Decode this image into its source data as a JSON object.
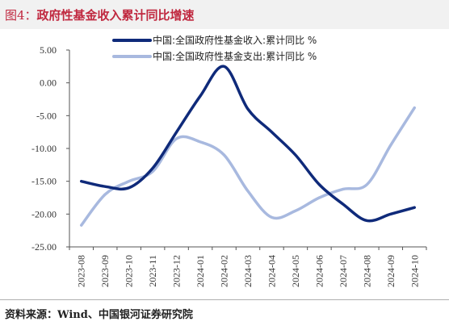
{
  "title_prefix": "图4：",
  "title": "政府性基金收入累计同比增速",
  "source": "资料来源：Wind、中国银河证券研究院",
  "chart_data": {
    "type": "line",
    "categories": [
      "2023-08",
      "2023-09",
      "2023-10",
      "2023-11",
      "2023-12",
      "2024-01",
      "2024-02",
      "2024-03",
      "2024-04",
      "2024-05",
      "2024-06",
      "2024-07",
      "2024-08",
      "2024-09",
      "2024-10"
    ],
    "ylim": [
      -25,
      5
    ],
    "yticks": [
      5,
      0,
      -5,
      -10,
      -15,
      -20,
      -25
    ],
    "ytick_labels": [
      "5.00",
      "0.00",
      "-5.00",
      "-10.00",
      "-15.00",
      "-20.00",
      "-25.00"
    ],
    "legend_placement": "top-right",
    "series": [
      {
        "name": "中国:全国政府性基金收入:累计同比 %",
        "color": "#0f2a7a",
        "values": [
          -15.0,
          -15.8,
          -16.0,
          -13.0,
          -7.5,
          -2.0,
          2.5,
          -4.0,
          -7.5,
          -11.0,
          -15.5,
          -18.5,
          -21.0,
          -20.0,
          -19.0
        ]
      },
      {
        "name": "中国:全国政府性基金支出:累计同比 %",
        "color": "#a8b9df",
        "values": [
          -21.7,
          -17.0,
          -15.0,
          -13.5,
          -8.5,
          -9.0,
          -11.0,
          -16.5,
          -20.5,
          -19.5,
          -17.5,
          -16.2,
          -15.5,
          -9.5,
          -3.8
        ]
      }
    ]
  }
}
